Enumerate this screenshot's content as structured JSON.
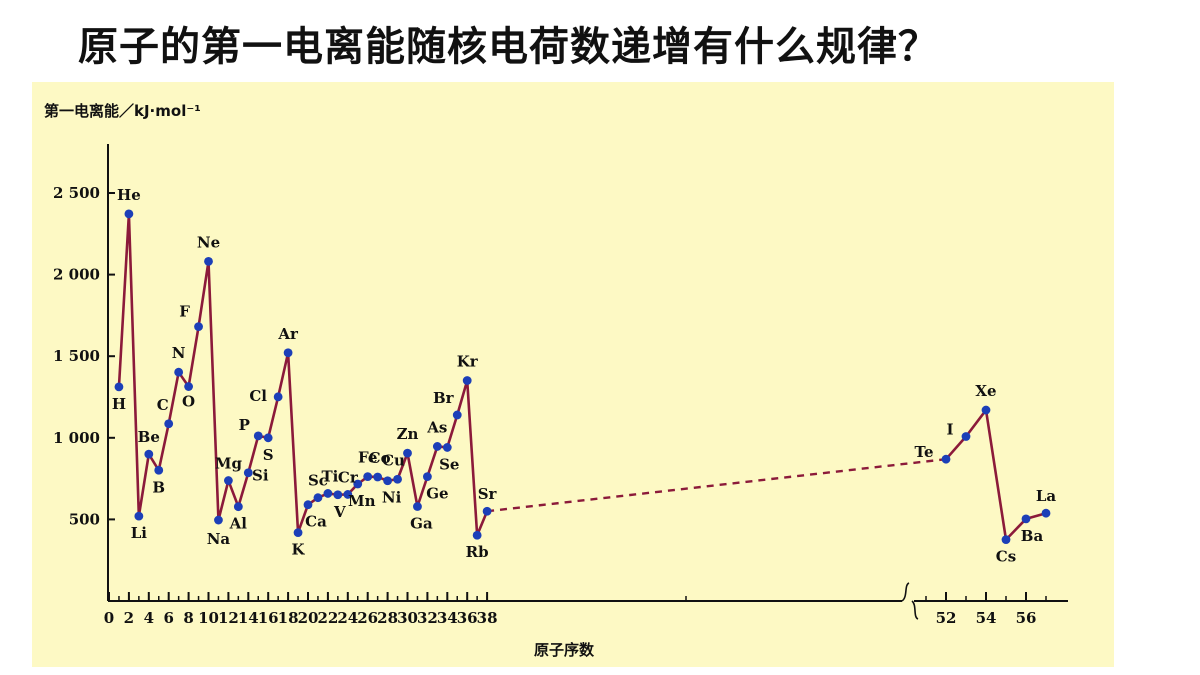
{
  "title": "原子的第一电离能随核电荷数递增有什么规律？",
  "colors": {
    "background": "#fdf9c4",
    "line": "#8b1a3a",
    "point": "#1c3fb8",
    "axis": "#111111"
  },
  "chart_data": {
    "type": "line",
    "ylabel": "第一电离能／kJ·mol⁻¹",
    "xlabel": "原子序数",
    "ylim": [
      0,
      2700
    ],
    "yticks": [
      500,
      1000,
      1500,
      2000,
      2500
    ],
    "ytick_labels": [
      "500",
      "1 000",
      "1 500",
      "2 000",
      "2 500"
    ],
    "xticks_main": [
      0,
      2,
      4,
      6,
      8,
      10,
      12,
      14,
      16,
      18,
      20,
      22,
      24,
      26,
      28,
      30,
      32,
      34,
      36,
      38
    ],
    "xticks_tail": [
      52,
      54,
      56
    ],
    "axis_break_between": [
      38,
      52
    ],
    "series": [
      {
        "points": [
          {
            "z": 1,
            "symbol": "H",
            "value": 1312
          },
          {
            "z": 2,
            "symbol": "He",
            "value": 2372
          },
          {
            "z": 3,
            "symbol": "Li",
            "value": 520
          },
          {
            "z": 4,
            "symbol": "Be",
            "value": 900
          },
          {
            "z": 5,
            "symbol": "B",
            "value": 801
          },
          {
            "z": 6,
            "symbol": "C",
            "value": 1086
          },
          {
            "z": 7,
            "symbol": "N",
            "value": 1402
          },
          {
            "z": 8,
            "symbol": "O",
            "value": 1314
          },
          {
            "z": 9,
            "symbol": "F",
            "value": 1681
          },
          {
            "z": 10,
            "symbol": "Ne",
            "value": 2081
          },
          {
            "z": 11,
            "symbol": "Na",
            "value": 496
          },
          {
            "z": 12,
            "symbol": "Mg",
            "value": 738
          },
          {
            "z": 13,
            "symbol": "Al",
            "value": 578
          },
          {
            "z": 14,
            "symbol": "Si",
            "value": 786
          },
          {
            "z": 15,
            "symbol": "P",
            "value": 1012
          },
          {
            "z": 16,
            "symbol": "S",
            "value": 1000
          },
          {
            "z": 17,
            "symbol": "Cl",
            "value": 1251
          },
          {
            "z": 18,
            "symbol": "Ar",
            "value": 1521
          },
          {
            "z": 19,
            "symbol": "K",
            "value": 419
          },
          {
            "z": 20,
            "symbol": "Ca",
            "value": 590
          },
          {
            "z": 21,
            "symbol": "Sc",
            "value": 633
          },
          {
            "z": 22,
            "symbol": "Ti",
            "value": 659
          },
          {
            "z": 23,
            "symbol": "V",
            "value": 651
          },
          {
            "z": 24,
            "symbol": "Cr",
            "value": 653
          },
          {
            "z": 25,
            "symbol": "Mn",
            "value": 717
          },
          {
            "z": 26,
            "symbol": "Fe",
            "value": 762
          },
          {
            "z": 27,
            "symbol": "Co",
            "value": 760
          },
          {
            "z": 28,
            "symbol": "Ni",
            "value": 737
          },
          {
            "z": 29,
            "symbol": "Cu",
            "value": 746
          },
          {
            "z": 30,
            "symbol": "Zn",
            "value": 906
          },
          {
            "z": 31,
            "symbol": "Ga",
            "value": 579
          },
          {
            "z": 32,
            "symbol": "Ge",
            "value": 762
          },
          {
            "z": 33,
            "symbol": "As",
            "value": 947
          },
          {
            "z": 34,
            "symbol": "Se",
            "value": 941
          },
          {
            "z": 35,
            "symbol": "Br",
            "value": 1140
          },
          {
            "z": 36,
            "symbol": "Kr",
            "value": 1351
          },
          {
            "z": 37,
            "symbol": "Rb",
            "value": 403
          },
          {
            "z": 38,
            "symbol": "Sr",
            "value": 550
          },
          {
            "z": 52,
            "symbol": "Te",
            "value": 869
          },
          {
            "z": 53,
            "symbol": "I",
            "value": 1008
          },
          {
            "z": 54,
            "symbol": "Xe",
            "value": 1170
          },
          {
            "z": 55,
            "symbol": "Cs",
            "value": 376
          },
          {
            "z": 56,
            "symbol": "Ba",
            "value": 503
          },
          {
            "z": 57,
            "symbol": "La",
            "value": 538
          }
        ]
      }
    ]
  }
}
